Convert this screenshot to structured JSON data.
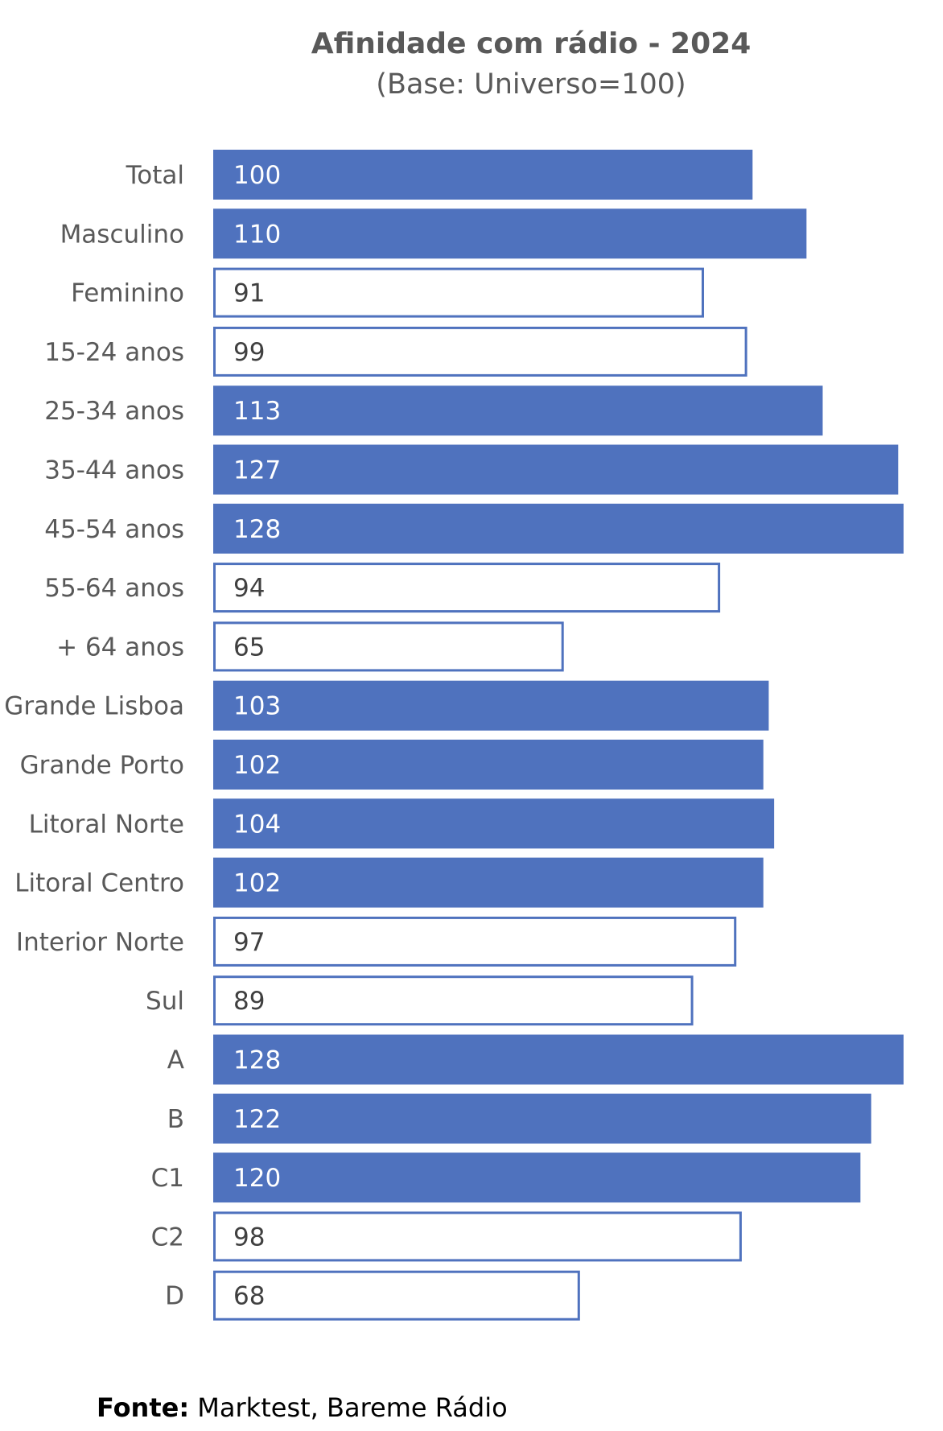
{
  "chart_data": {
    "type": "bar",
    "orientation": "horizontal",
    "title": "Afinidade com rádio - 2024",
    "subtitle": "(Base: Universo=100)",
    "categories": [
      "Total",
      "Masculino",
      "Feminino",
      "15-24 anos",
      "25-34 anos",
      "35-44 anos",
      "45-54 anos",
      "55-64 anos",
      "+ 64  anos",
      "Grande Lisboa",
      "Grande Porto",
      "Litoral Norte",
      "Litoral Centro",
      "Interior Norte",
      "Sul",
      "A",
      "B",
      "C1",
      "C2",
      "D"
    ],
    "values": [
      100,
      110,
      91,
      99,
      113,
      127,
      128,
      94,
      65,
      103,
      102,
      104,
      102,
      97,
      89,
      128,
      122,
      120,
      98,
      68
    ],
    "xlim": [
      0,
      128
    ],
    "grid": false,
    "rule": "bars with value >= 100 are filled; bars below 100 are outlined"
  },
  "source": {
    "prefix": "Fonte:",
    "text": " Marktest, Bareme Rádio"
  },
  "colors": {
    "filled_bar": "#4f72be",
    "outline_bar": "#4f72be",
    "filled_label": "#ffffff",
    "outline_label": "#404040",
    "axis_text": "#595959"
  }
}
